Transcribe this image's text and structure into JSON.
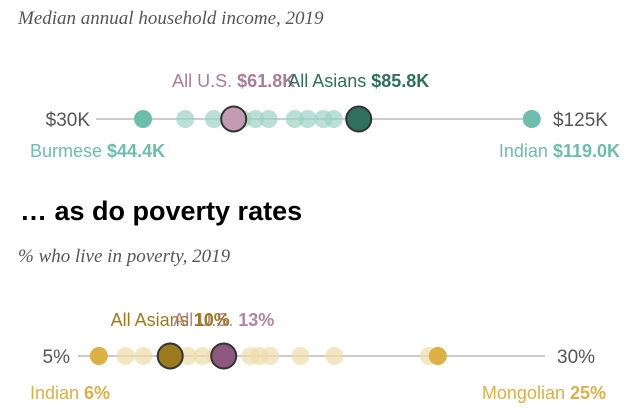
{
  "header": {
    "income_subtitle": "Median annual household income, 2019",
    "poverty_heading": "… as do poverty rates",
    "poverty_subtitle": "% who live in poverty, 2019"
  },
  "colors": {
    "income_light": "#9dd2c4",
    "income_mid": "#6cbdab",
    "income_dark": "#2f6f5b",
    "us_pink": "#c49bb5",
    "us_text": "#a97d99",
    "poverty_light": "#eedcaa",
    "poverty_mid": "#dcb045",
    "poverty_dark": "#9c7b1f",
    "poverty_us": "#8c587e",
    "poverty_us_text": "#b087a3",
    "axis": "#bbbbbb"
  },
  "chart_data": [
    {
      "type": "scatter",
      "title": "Median annual household income, 2019",
      "axis_min_label": "$30K",
      "axis_max_label": "$125K",
      "xlim": [
        30,
        125
      ],
      "units": "thousand USD",
      "points": [
        44.4,
        52.5,
        58,
        63.5,
        66,
        68.5,
        73.5,
        76,
        79,
        81,
        85.8,
        119.0
      ],
      "annotations": [
        {
          "key": "us",
          "name": "All U.S.",
          "value": 61.8,
          "value_label": "$61.8K",
          "position": "above"
        },
        {
          "key": "asians",
          "name": "All Asians",
          "value": 85.8,
          "value_label": "$85.8K",
          "position": "above"
        },
        {
          "key": "min",
          "name": "Burmese",
          "value": 44.4,
          "value_label": "$44.4K",
          "position": "below"
        },
        {
          "key": "max",
          "name": "Indian",
          "value": 119.0,
          "value_label": "$119.0K",
          "position": "below"
        }
      ]
    },
    {
      "type": "scatter",
      "title": "% who live in poverty, 2019",
      "axis_min_label": "5%",
      "axis_max_label": "30%",
      "xlim": [
        5,
        30
      ],
      "units": "percent",
      "points": [
        6,
        7.5,
        8.5,
        10,
        11,
        11.8,
        12.5,
        14.5,
        15,
        15.6,
        17.3,
        19.2,
        24.5,
        25
      ],
      "annotations": [
        {
          "key": "asians",
          "name": "All Asians",
          "value": 10,
          "value_label": "10%",
          "position": "above"
        },
        {
          "key": "us",
          "name": "All U.S.",
          "value": 13,
          "value_label": "13%",
          "position": "above"
        },
        {
          "key": "min",
          "name": "Indian",
          "value": 6,
          "value_label": "6%",
          "position": "below"
        },
        {
          "key": "max",
          "name": "Mongolian",
          "value": 25,
          "value_label": "25%",
          "position": "below"
        }
      ]
    }
  ]
}
